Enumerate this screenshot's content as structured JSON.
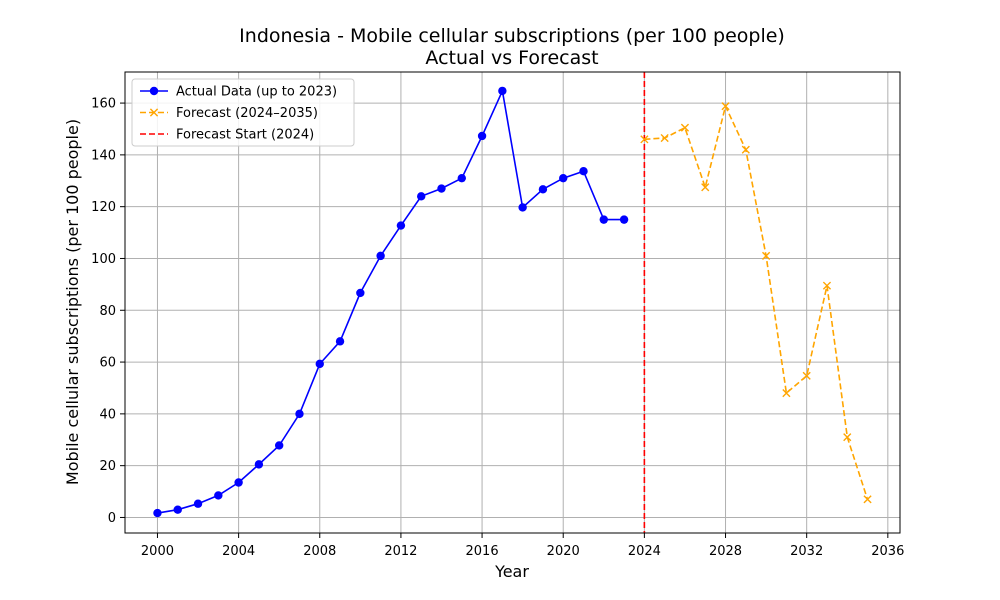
{
  "chart_data": {
    "type": "line",
    "title": "Indonesia - Mobile cellular subscriptions (per 100 people)",
    "subtitle": "Actual vs Forecast",
    "xlabel": "Year",
    "ylabel": "Mobile cellular subscriptions (per 100 people)",
    "xlim": [
      1998.4,
      2036.6
    ],
    "ylim": [
      -6,
      172
    ],
    "xticks": [
      2000,
      2004,
      2008,
      2012,
      2016,
      2020,
      2024,
      2028,
      2032,
      2036
    ],
    "yticks": [
      0,
      20,
      40,
      60,
      80,
      100,
      120,
      140,
      160
    ],
    "grid": true,
    "legend_position": "top-left",
    "series": [
      {
        "name": "Actual Data (up to 2023)",
        "color": "#0000ff",
        "style": "solid",
        "marker": "circle",
        "x": [
          2000,
          2001,
          2002,
          2003,
          2004,
          2005,
          2006,
          2007,
          2008,
          2009,
          2010,
          2011,
          2012,
          2013,
          2014,
          2015,
          2016,
          2017,
          2018,
          2019,
          2020,
          2021,
          2022,
          2023
        ],
        "y": [
          1.7,
          3.0,
          5.3,
          8.5,
          13.5,
          20.5,
          27.8,
          40.0,
          59.3,
          68.0,
          86.7,
          101.0,
          112.7,
          124.0,
          127.0,
          131.0,
          147.3,
          164.7,
          119.7,
          126.7,
          131.0,
          133.7,
          115.0,
          115.0
        ]
      },
      {
        "name": "Forecast (2024–2035)",
        "color": "#ffa500",
        "style": "dashed",
        "marker": "x",
        "x": [
          2024,
          2025,
          2026,
          2027,
          2028,
          2029,
          2030,
          2031,
          2032,
          2033,
          2034,
          2035
        ],
        "y": [
          146.0,
          146.5,
          150.5,
          127.5,
          158.8,
          142.0,
          101.0,
          48.0,
          54.7,
          89.5,
          31.0,
          7.0
        ]
      }
    ],
    "vline": {
      "name": "Forecast Start (2024)",
      "x": 2024,
      "color": "#ff0000",
      "style": "dashed"
    }
  }
}
